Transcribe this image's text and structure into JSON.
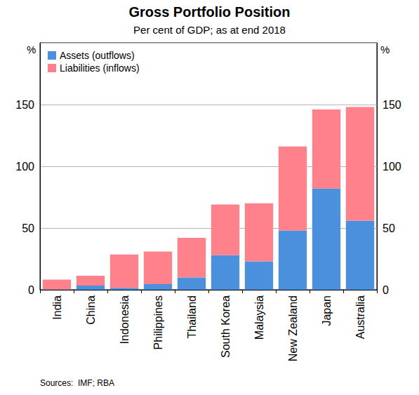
{
  "chart_data": {
    "type": "bar",
    "title": "Gross Portfolio Position",
    "subtitle": "Per cent of GDP; as at end 2018",
    "ylabel": "%",
    "source": "Sources:  IMF; RBA",
    "categories": [
      "India",
      "China",
      "Indonesia",
      "Philippines",
      "Thailand",
      "South Korea",
      "Malaysia",
      "New Zealand",
      "Japan",
      "Australia"
    ],
    "series": [
      {
        "name": "Assets (outflows)",
        "color": "#4a90dc",
        "values": [
          0.3,
          3.4,
          1.5,
          4.5,
          10,
          28,
          23,
          48,
          82,
          56
        ]
      },
      {
        "name": "Liabilities (inflows)",
        "color": "#ff818c",
        "values": [
          8,
          8,
          27,
          26.5,
          32,
          41,
          47,
          68,
          64,
          92
        ]
      }
    ],
    "ylim": [
      0,
      200
    ],
    "yticks": [
      0,
      50,
      100,
      150
    ],
    "stacked": true,
    "grid": true,
    "legend": "upper left"
  }
}
